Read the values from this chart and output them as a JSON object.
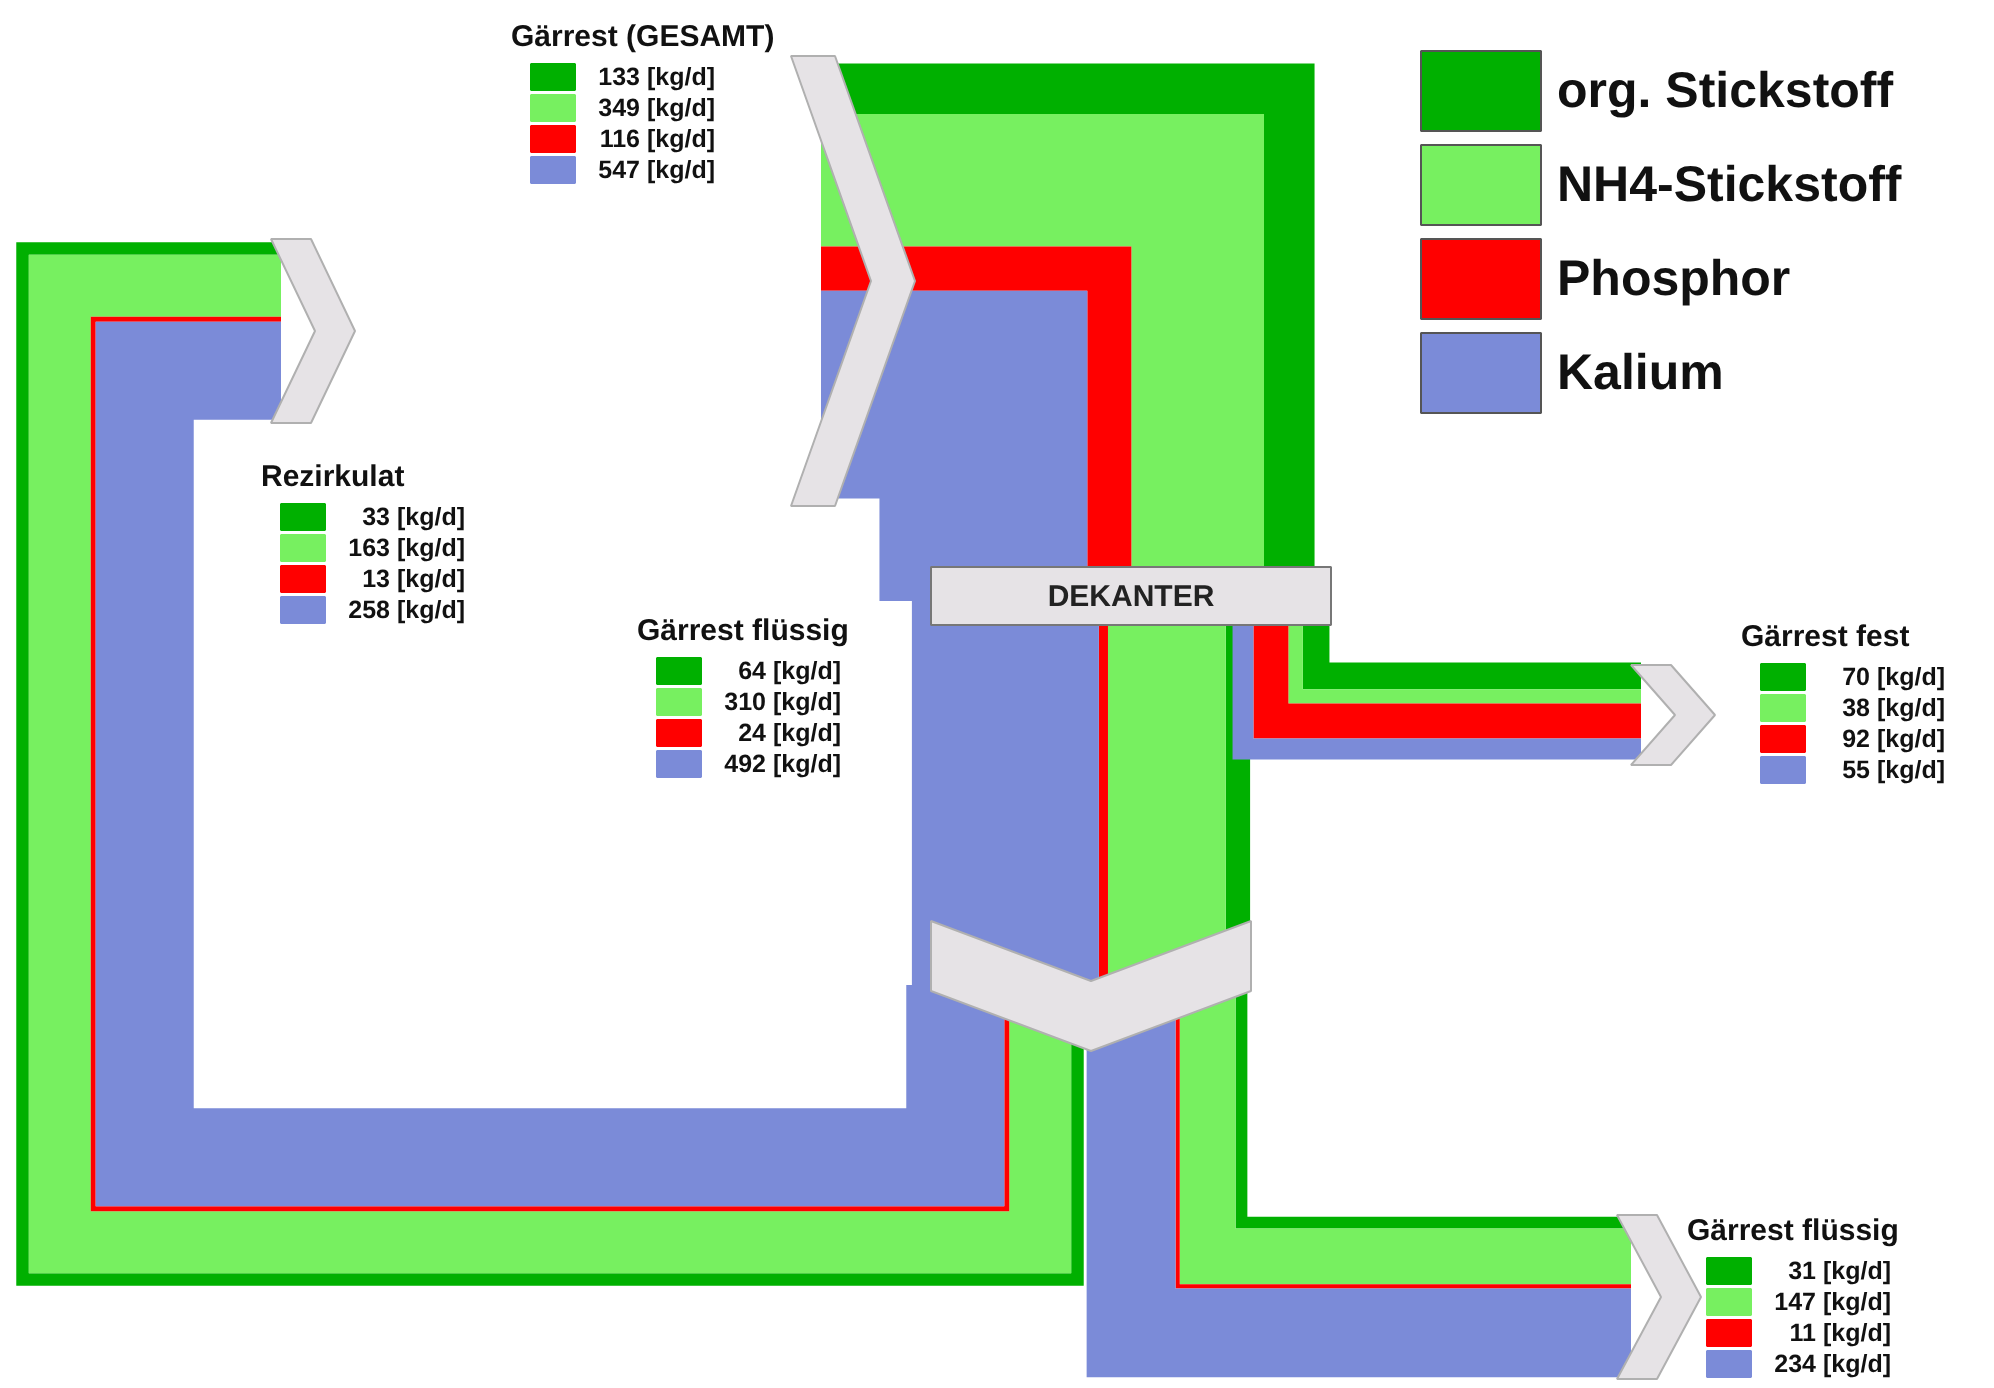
{
  "chart_data": {
    "type": "other",
    "categories": [
      "Gärrest (GESAMT)",
      "Rezirkulat",
      "Gärrest flüssig",
      "Gärrest fest",
      "Gärrest flüssig"
    ],
    "series": [
      {
        "name": "org. Stickstoff",
        "color": "#00b000",
        "values": [
          133,
          33,
          64,
          70,
          31
        ],
        "value_labels": [
          "133 [kg/d]",
          "33 [kg/d]",
          "64 [kg/d]",
          "70 [kg/d]",
          "31 [kg/d]"
        ]
      },
      {
        "name": "NH4-Stickstoff",
        "color": "#77f060",
        "values": [
          349,
          163,
          310,
          38,
          147
        ],
        "value_labels": [
          "349 [kg/d]",
          "163 [kg/d]",
          "310 [kg/d]",
          "38 [kg/d]",
          "147 [kg/d]"
        ]
      },
      {
        "name": "Phosphor",
        "color": "#ff0000",
        "values": [
          116,
          13,
          24,
          92,
          11
        ],
        "value_labels": [
          "116 [kg/d]",
          "13 [kg/d]",
          "24 [kg/d]",
          "92 [kg/d]",
          "11 [kg/d]"
        ]
      },
      {
        "name": "Kalium",
        "color": "#7b8bd8",
        "values": [
          547,
          258,
          492,
          55,
          234
        ],
        "value_labels": [
          "547 [kg/d]",
          "258 [kg/d]",
          "492 [kg/d]",
          "55 [kg/d]",
          "234 [kg/d]"
        ]
      }
    ],
    "annotations": [
      "DEKANTER"
    ],
    "legend": "top right"
  }
}
